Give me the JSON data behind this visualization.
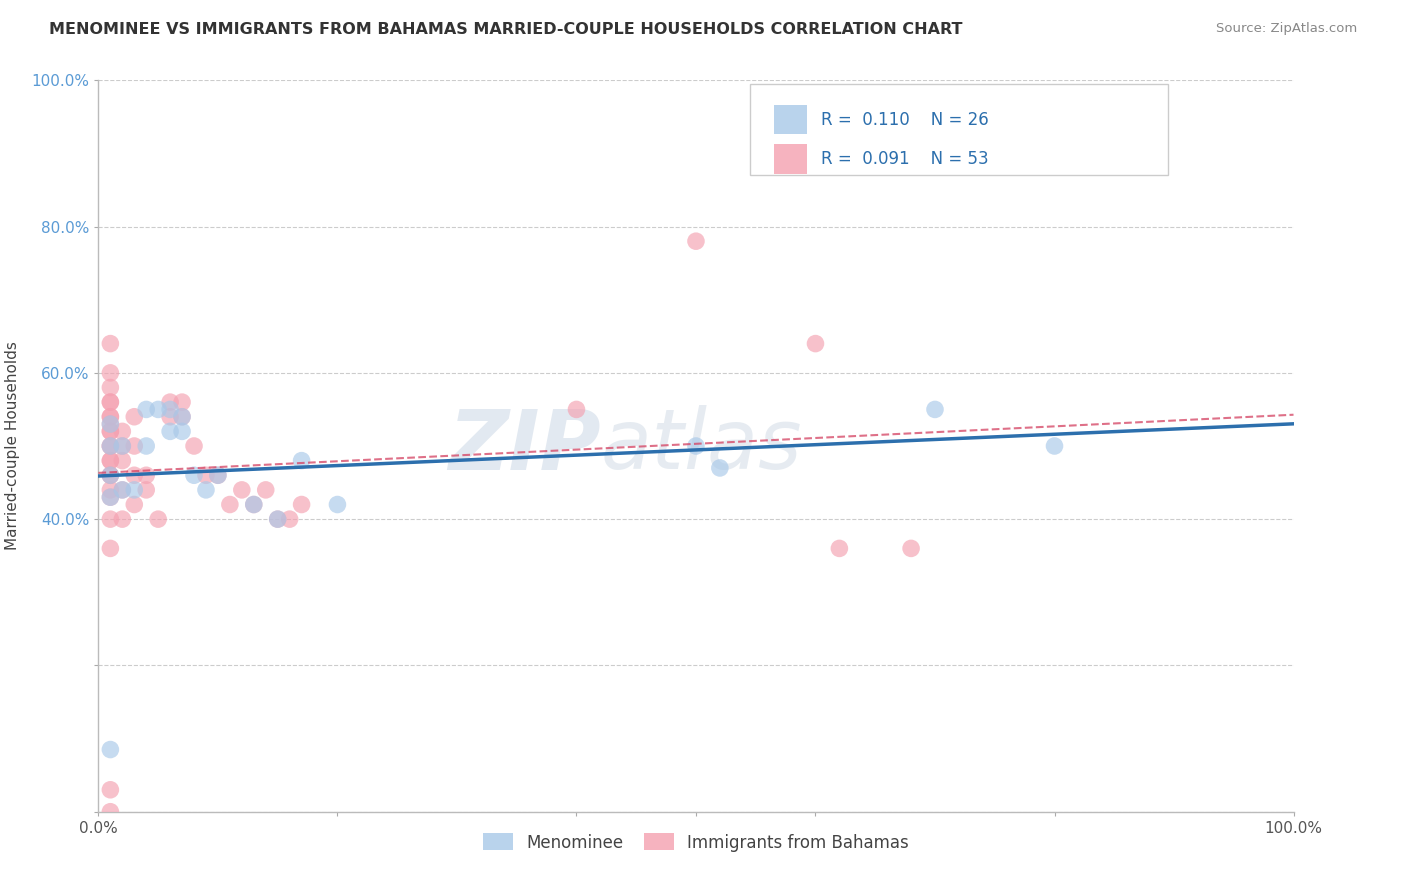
{
  "title": "MENOMINEE VS IMMIGRANTS FROM BAHAMAS MARRIED-COUPLE HOUSEHOLDS CORRELATION CHART",
  "source": "Source: ZipAtlas.com",
  "ylabel": "Married-couple Households",
  "legend_label1": "Menominee",
  "legend_label2": "Immigrants from Bahamas",
  "blue_color": "#a8c8e8",
  "pink_color": "#f4a0b0",
  "blue_line_color": "#2c6fad",
  "pink_line_color": "#d44060",
  "watermark_zip": "ZIP",
  "watermark_atlas": "atlas",
  "menominee_x": [
    0.01,
    0.01,
    0.01,
    0.01,
    0.01,
    0.02,
    0.02,
    0.03,
    0.04,
    0.04,
    0.05,
    0.06,
    0.06,
    0.07,
    0.07,
    0.08,
    0.09,
    0.1,
    0.13,
    0.15,
    0.17,
    0.2,
    0.5,
    0.52,
    0.7,
    0.8
  ],
  "menominee_y": [
    0.085,
    0.43,
    0.46,
    0.5,
    0.53,
    0.44,
    0.5,
    0.44,
    0.5,
    0.55,
    0.55,
    0.52,
    0.55,
    0.52,
    0.54,
    0.46,
    0.44,
    0.46,
    0.42,
    0.4,
    0.48,
    0.42,
    0.5,
    0.47,
    0.55,
    0.5
  ],
  "bahamas_x": [
    0.01,
    0.01,
    0.01,
    0.01,
    0.01,
    0.01,
    0.01,
    0.01,
    0.01,
    0.01,
    0.01,
    0.01,
    0.01,
    0.01,
    0.01,
    0.01,
    0.01,
    0.01,
    0.01,
    0.01,
    0.01,
    0.01,
    0.02,
    0.02,
    0.02,
    0.02,
    0.02,
    0.03,
    0.03,
    0.03,
    0.03,
    0.04,
    0.04,
    0.05,
    0.06,
    0.06,
    0.07,
    0.07,
    0.08,
    0.09,
    0.1,
    0.11,
    0.12,
    0.13,
    0.14,
    0.15,
    0.16,
    0.17,
    0.4,
    0.5,
    0.6,
    0.62,
    0.68
  ],
  "bahamas_y": [
    0.0,
    0.03,
    0.36,
    0.4,
    0.43,
    0.46,
    0.48,
    0.5,
    0.52,
    0.53,
    0.54,
    0.56,
    0.58,
    0.44,
    0.46,
    0.48,
    0.5,
    0.52,
    0.54,
    0.56,
    0.64,
    0.6,
    0.4,
    0.44,
    0.48,
    0.5,
    0.52,
    0.42,
    0.46,
    0.5,
    0.54,
    0.44,
    0.46,
    0.4,
    0.54,
    0.56,
    0.54,
    0.56,
    0.5,
    0.46,
    0.46,
    0.42,
    0.44,
    0.42,
    0.44,
    0.4,
    0.4,
    0.42,
    0.55,
    0.78,
    0.64,
    0.36,
    0.36
  ],
  "xlim": [
    0.0,
    1.0
  ],
  "ylim": [
    0.0,
    1.0
  ],
  "yticks": [
    0.0,
    0.2,
    0.4,
    0.6,
    0.8,
    1.0
  ],
  "yticklabels": [
    "",
    "",
    "40.0%",
    "60.0%",
    "80.0%",
    "100.0%"
  ],
  "xticks": [
    0.0,
    0.5,
    1.0
  ],
  "xticklabels_left": "0.0%",
  "xticklabels_right": "100.0%"
}
